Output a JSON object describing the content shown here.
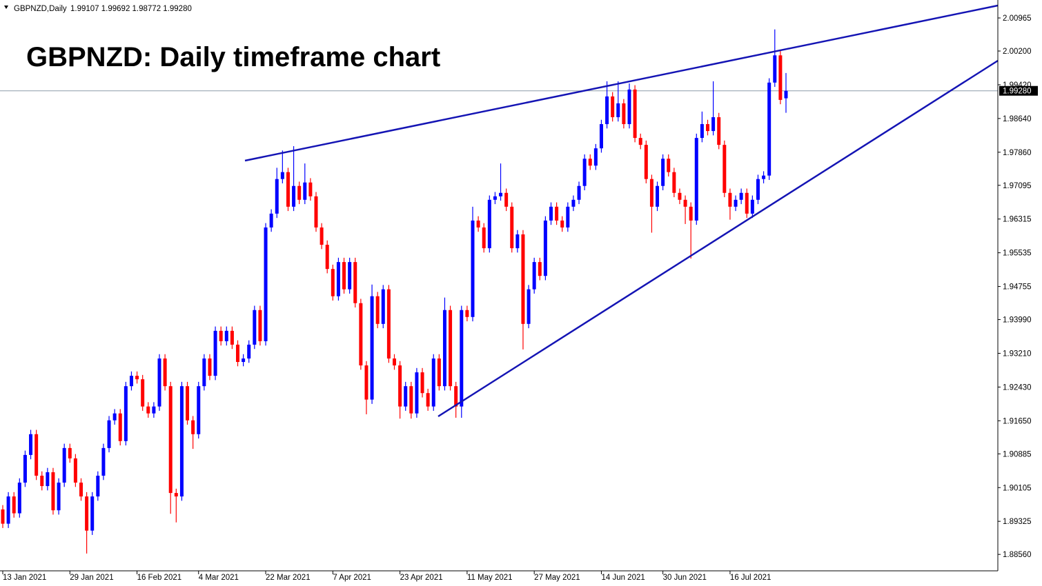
{
  "chart_data": {
    "type": "candlestick",
    "symbol": "GBPNZD,Daily",
    "ohlc_text": "1.99107 1.99692 1.98772 1.99280",
    "title": "GBPNZD: Daily timeframe chart",
    "up_color": "#0000ff",
    "down_color": "#ff0000",
    "ylim": [
      1.8818,
      2.0138
    ],
    "yticks": [
      2.00965,
      {
        "value": 2.002,
        "label": "2.00200"
      },
      {
        "value": 1.9942,
        "label": "1.99420"
      },
      {
        "value": 1.9864,
        "label": "1.98640"
      },
      {
        "value": 1.9786,
        "label": "1.97860"
      },
      1.97095,
      1.96315,
      1.95535,
      1.94755,
      {
        "value": 1.9399,
        "label": "1.93990"
      },
      {
        "value": 1.9321,
        "label": "1.93210"
      },
      {
        "value": 1.9243,
        "label": "1.92430"
      },
      {
        "value": 1.9165,
        "label": "1.91650"
      },
      1.90885,
      1.90105,
      1.89325,
      {
        "value": 1.8856,
        "label": "1.88560"
      }
    ],
    "current_price": {
      "value": 1.9928,
      "label": "1.99280"
    },
    "categories": [
      "13 Jan 2021",
      null,
      null,
      null,
      null,
      null,
      null,
      null,
      null,
      null,
      null,
      null,
      "29 Jan 2021",
      null,
      null,
      null,
      null,
      null,
      null,
      null,
      null,
      null,
      null,
      null,
      "16 Feb 2021",
      null,
      null,
      null,
      null,
      null,
      null,
      null,
      null,
      null,
      null,
      "4 Mar 2021",
      null,
      null,
      null,
      null,
      null,
      null,
      null,
      null,
      null,
      null,
      null,
      "22 Mar 2021",
      null,
      null,
      null,
      null,
      null,
      null,
      null,
      null,
      null,
      null,
      null,
      "7 Apr 2021",
      null,
      null,
      null,
      null,
      null,
      null,
      null,
      null,
      null,
      null,
      null,
      "23 Apr 2021",
      null,
      null,
      null,
      null,
      null,
      null,
      null,
      null,
      null,
      null,
      null,
      "11 May 2021",
      null,
      null,
      null,
      null,
      null,
      null,
      null,
      null,
      null,
      null,
      null,
      "27 May 2021",
      null,
      null,
      null,
      null,
      null,
      null,
      null,
      null,
      null,
      null,
      null,
      "14 Jun 2021",
      null,
      null,
      null,
      null,
      null,
      null,
      null,
      null,
      null,
      null,
      "30 Jun 2021",
      null,
      null,
      null,
      null,
      null,
      null,
      null,
      null,
      null,
      null,
      null,
      "16 Jul 2021",
      null,
      null,
      null,
      null,
      null,
      null,
      null,
      null,
      null,
      null
    ],
    "open": [
      1.896,
      1.8927,
      1.899,
      1.8951,
      1.9022,
      1.9086,
      1.9134,
      1.9038,
      1.9014,
      1.9046,
      1.8958,
      1.9022,
      1.9102,
      1.9078,
      1.9022,
      1.899,
      1.8911,
      1.899,
      1.9038,
      1.9102,
      1.9166,
      1.9182,
      1.9118,
      1.9245,
      1.9269,
      1.9261,
      1.9198,
      1.9182,
      1.9198,
      1.9309,
      1.9245,
      1.8998,
      1.899,
      1.9245,
      1.9166,
      1.9134,
      1.9245,
      1.9309,
      1.9269,
      1.9373,
      1.9349,
      1.9373,
      1.9341,
      1.9301,
      1.9309,
      1.9341,
      1.9421,
      1.9349,
      1.9612,
      1.9644,
      1.9724,
      1.974,
      1.966,
      1.9708,
      1.9676,
      1.9716,
      1.9684,
      1.9612,
      1.9572,
      1.9516,
      1.9453,
      1.9532,
      1.9469,
      1.9532,
      1.9437,
      1.9293,
      1.9214,
      1.9453,
      1.9389,
      1.9469,
      1.9309,
      1.9293,
      1.9198,
      1.9245,
      1.9182,
      1.9277,
      1.9229,
      1.9198,
      1.9309,
      1.9245,
      1.9421,
      1.9245,
      1.9198,
      1.9421,
      1.9405,
      1.9628,
      1.9612,
      1.9564,
      1.9676,
      1.9684,
      1.9692,
      1.966,
      1.9564,
      1.9596,
      1.9389,
      1.9469,
      1.9532,
      1.95,
      1.9628,
      1.966,
      1.9628,
      1.9612,
      1.966,
      1.9676,
      1.9708,
      1.9771,
      1.9755,
      1.9795,
      1.9851,
      1.9915,
      1.9867,
      1.9899,
      1.9851,
      1.9931,
      1.9819,
      1.9803,
      1.9724,
      1.966,
      1.9708,
      1.9771,
      1.974,
      1.9692,
      1.9676,
      1.966,
      1.9628,
      1.9819,
      1.9851,
      1.9835,
      1.9867,
      1.9803,
      1.9692,
      1.966,
      1.9676,
      1.9692,
      1.9644,
      1.9676,
      1.9724,
      1.9732,
      1.9947,
      2.001,
      1.99107
    ],
    "high": [
      1.897,
      1.9,
      1.9,
      1.9032,
      1.9096,
      1.9144,
      1.9144,
      1.9048,
      1.9056,
      1.9056,
      1.9032,
      1.9112,
      1.9112,
      1.9088,
      1.9032,
      1.9,
      1.9,
      1.9048,
      1.9112,
      1.9176,
      1.9192,
      1.9192,
      1.9255,
      1.9279,
      1.9279,
      1.9271,
      1.9208,
      1.9208,
      1.9319,
      1.9319,
      1.9255,
      1.9008,
      1.9255,
      1.9255,
      1.9176,
      1.9255,
      1.9319,
      1.9319,
      1.9383,
      1.9383,
      1.9383,
      1.9383,
      1.9351,
      1.9319,
      1.9351,
      1.9431,
      1.9431,
      1.9622,
      1.9654,
      1.975,
      1.979,
      1.975,
      1.98,
      1.9718,
      1.976,
      1.9726,
      1.9694,
      1.9622,
      1.9582,
      1.9526,
      1.9542,
      1.9542,
      1.9542,
      1.9542,
      1.9447,
      1.9303,
      1.948,
      1.9463,
      1.9479,
      1.9479,
      1.9319,
      1.9303,
      1.9255,
      1.9255,
      1.9287,
      1.9287,
      1.9239,
      1.9319,
      1.9319,
      1.945,
      1.9431,
      1.9255,
      1.9431,
      1.9431,
      1.966,
      1.9638,
      1.9622,
      1.9686,
      1.9694,
      1.976,
      1.9702,
      1.967,
      1.9606,
      1.9606,
      1.9479,
      1.9542,
      1.9542,
      1.9638,
      1.967,
      1.967,
      1.9638,
      1.967,
      1.9686,
      1.9718,
      1.9781,
      1.9781,
      1.9805,
      1.9861,
      1.995,
      1.9925,
      1.995,
      1.9909,
      1.9945,
      1.9941,
      1.9829,
      1.9813,
      1.9734,
      1.9718,
      1.9781,
      1.9781,
      1.975,
      1.9702,
      1.9686,
      1.967,
      1.9829,
      1.988,
      1.9861,
      1.995,
      1.9877,
      1.9813,
      1.9702,
      1.9686,
      1.9702,
      1.9702,
      1.9686,
      1.9734,
      1.9742,
      1.9957,
      2.007,
      2.002,
      1.99692
    ],
    "low": [
      1.8917,
      1.8917,
      1.8941,
      1.8941,
      1.9012,
      1.9076,
      1.9028,
      1.9004,
      1.9004,
      1.8948,
      1.8948,
      1.9012,
      1.9068,
      1.9012,
      1.898,
      1.8858,
      1.8901,
      1.898,
      1.9028,
      1.9092,
      1.9156,
      1.9108,
      1.9108,
      1.9235,
      1.9251,
      1.9188,
      1.9172,
      1.9172,
      1.9188,
      1.9235,
      1.895,
      1.893,
      1.898,
      1.9156,
      1.91,
      1.9124,
      1.9235,
      1.9259,
      1.9259,
      1.9339,
      1.9339,
      1.9331,
      1.9291,
      1.9291,
      1.9299,
      1.9331,
      1.9339,
      1.9339,
      1.9602,
      1.9634,
      1.9714,
      1.965,
      1.965,
      1.9666,
      1.9666,
      1.9674,
      1.9602,
      1.9562,
      1.9506,
      1.9443,
      1.9443,
      1.9459,
      1.9459,
      1.9427,
      1.9283,
      1.918,
      1.9204,
      1.9379,
      1.9379,
      1.9299,
      1.9283,
      1.917,
      1.9188,
      1.917,
      1.9172,
      1.9219,
      1.9188,
      1.9188,
      1.9235,
      1.9235,
      1.9235,
      1.9172,
      1.9172,
      1.9395,
      1.9395,
      1.9602,
      1.9554,
      1.9554,
      1.9666,
      1.9674,
      1.965,
      1.9554,
      1.9554,
      1.933,
      1.9379,
      1.9459,
      1.949,
      1.949,
      1.9618,
      1.9618,
      1.9602,
      1.9602,
      1.965,
      1.9666,
      1.9698,
      1.9745,
      1.9745,
      1.9785,
      1.9841,
      1.9857,
      1.9857,
      1.9841,
      1.9841,
      1.9809,
      1.9793,
      1.9714,
      1.96,
      1.965,
      1.9698,
      1.973,
      1.9682,
      1.9666,
      1.962,
      1.954,
      1.9618,
      1.9809,
      1.9825,
      1.9825,
      1.9793,
      1.9682,
      1.963,
      1.965,
      1.9666,
      1.9634,
      1.9634,
      1.9666,
      1.9714,
      1.9722,
      1.9937,
      1.9897,
      1.98772
    ],
    "close": [
      1.8927,
      1.899,
      1.8951,
      1.9022,
      1.9086,
      1.9134,
      1.9038,
      1.9014,
      1.9046,
      1.8958,
      1.9022,
      1.9102,
      1.9078,
      1.9022,
      1.899,
      1.8911,
      1.899,
      1.9038,
      1.9102,
      1.9166,
      1.9182,
      1.9118,
      1.9245,
      1.9269,
      1.9261,
      1.9198,
      1.9182,
      1.9198,
      1.9309,
      1.9245,
      1.8998,
      1.899,
      1.9245,
      1.9166,
      1.9134,
      1.9245,
      1.9309,
      1.9269,
      1.9373,
      1.9349,
      1.9373,
      1.9341,
      1.9301,
      1.9309,
      1.9341,
      1.9421,
      1.9349,
      1.9612,
      1.9644,
      1.9724,
      1.974,
      1.966,
      1.9708,
      1.9676,
      1.9716,
      1.9684,
      1.9612,
      1.9572,
      1.9516,
      1.9453,
      1.9532,
      1.9469,
      1.9532,
      1.9437,
      1.9293,
      1.9214,
      1.9453,
      1.9389,
      1.9469,
      1.9309,
      1.9293,
      1.9198,
      1.9245,
      1.9182,
      1.9277,
      1.9229,
      1.9198,
      1.9309,
      1.9245,
      1.9421,
      1.9245,
      1.9198,
      1.9421,
      1.9405,
      1.9628,
      1.9612,
      1.9564,
      1.9676,
      1.9684,
      1.9692,
      1.966,
      1.9564,
      1.9596,
      1.9389,
      1.9469,
      1.9532,
      1.95,
      1.9628,
      1.966,
      1.9628,
      1.9612,
      1.966,
      1.9676,
      1.9708,
      1.9771,
      1.9755,
      1.9795,
      1.9851,
      1.9915,
      1.9867,
      1.9899,
      1.9851,
      1.9931,
      1.9819,
      1.9803,
      1.9724,
      1.966,
      1.9708,
      1.9771,
      1.974,
      1.9692,
      1.9676,
      1.966,
      1.9628,
      1.9819,
      1.9851,
      1.9835,
      1.9867,
      1.9803,
      1.9692,
      1.966,
      1.9676,
      1.9692,
      1.9644,
      1.9676,
      1.9724,
      1.9732,
      1.9947,
      2.001,
      1.9907,
      1.9928
    ]
  }
}
